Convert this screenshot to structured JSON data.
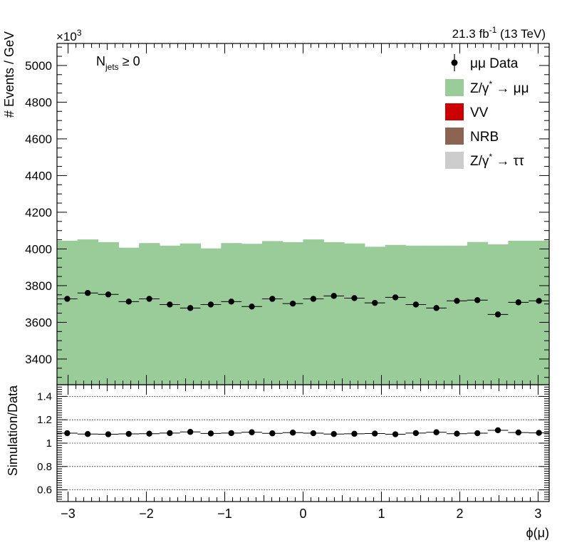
{
  "header": {
    "exponent_prefix": "×10",
    "exponent_power": "3",
    "lumi_value": "21.3 fb",
    "lumi_power": "-1",
    "lumi_energy": " (13 TeV)"
  },
  "annotation": {
    "n_letter": "N",
    "n_sub": "jets",
    "n_rest": " ≥ 0"
  },
  "legend": [
    {
      "id": "data",
      "style": "marker",
      "color": "#000000",
      "text": "μμ Data"
    },
    {
      "id": "zmm",
      "style": "box",
      "color": "#99cc99",
      "text": "Z/γ",
      "sup": "*",
      "after": " → μμ"
    },
    {
      "id": "vv",
      "style": "box",
      "color": "#cc0000",
      "text": "VV"
    },
    {
      "id": "nrb",
      "style": "box",
      "color": "#8b6452",
      "text": "NRB"
    },
    {
      "id": "ztt",
      "style": "box",
      "color": "#cccccc",
      "text": "Z/γ",
      "sup": "*",
      "after": " → ττ"
    }
  ],
  "chart_data": [
    {
      "type": "bar",
      "panel": "main",
      "ylabel": "# Events / GeV",
      "xlim": [
        -3.1416,
        3.1416
      ],
      "ylim": [
        3260,
        5120
      ],
      "yticks": [
        3400,
        3600,
        3800,
        4000,
        4200,
        4400,
        4600,
        4800,
        5000
      ],
      "y_scale_note": "values in units of 10^3",
      "bins": 24,
      "series": [
        {
          "name": "Z/γ* → μμ",
          "kind": "stacked-fill",
          "color": "#99cc99",
          "values": [
            4045,
            4052,
            4037,
            4007,
            4032,
            4018,
            4030,
            4003,
            4032,
            4028,
            4043,
            4037,
            4052,
            4037,
            4030,
            4012,
            4022,
            4018,
            4018,
            4018,
            4038,
            4025,
            4045,
            4045
          ]
        },
        {
          "name": "μμ Data",
          "kind": "points",
          "color": "#000000",
          "values": [
            3728,
            3760,
            3752,
            3713,
            3728,
            3697,
            3678,
            3697,
            3713,
            3686,
            3728,
            3702,
            3728,
            3744,
            3732,
            3706,
            3736,
            3697,
            3678,
            3717,
            3721,
            3643,
            3709,
            3717
          ]
        }
      ]
    },
    {
      "type": "scatter",
      "panel": "ratio",
      "ylabel": "Simulation/Data",
      "xlabel": "ϕ(μ)",
      "xlim": [
        -3.1416,
        3.1416
      ],
      "ylim": [
        0.5,
        1.5
      ],
      "yticks": [
        0.6,
        0.8,
        1,
        1.2,
        1.4
      ],
      "xticks": [
        -3,
        -2,
        -1,
        0,
        1,
        2,
        3
      ],
      "gridlines_y": [
        0.6,
        0.8,
        1.0,
        1.2,
        1.4
      ],
      "series": [
        {
          "name": "Simulation/Data",
          "color": "#000000",
          "values": [
            1.085,
            1.078,
            1.076,
            1.079,
            1.081,
            1.086,
            1.096,
            1.083,
            1.086,
            1.093,
            1.084,
            1.09,
            1.085,
            1.078,
            1.08,
            1.082,
            1.076,
            1.086,
            1.093,
            1.081,
            1.085,
            1.11,
            1.091,
            1.088
          ]
        }
      ]
    }
  ]
}
